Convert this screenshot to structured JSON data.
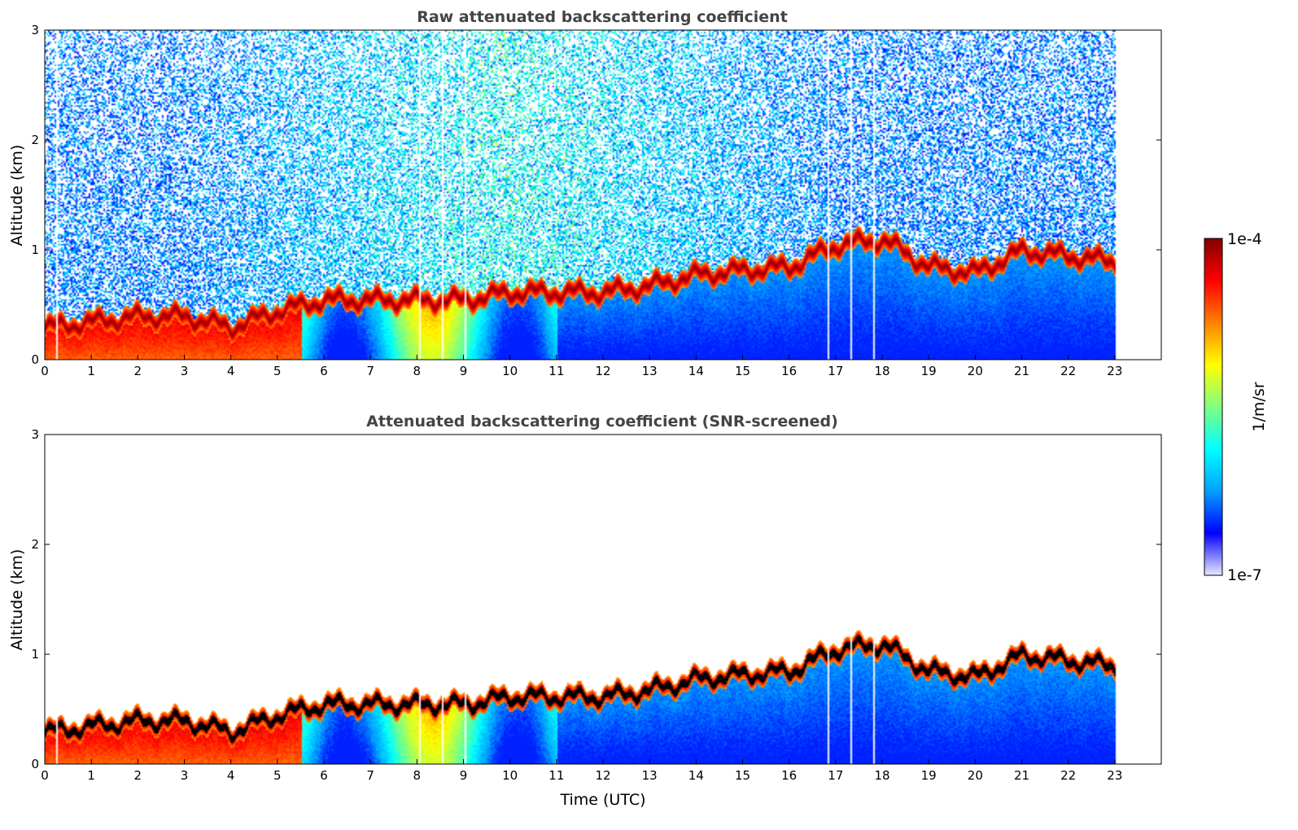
{
  "chart_data": [
    {
      "type": "heatmap",
      "title": "Raw attenuated backscattering coefficient",
      "xlabel": "",
      "ylabel": "Altitude (km)",
      "xlim": [
        0,
        24
      ],
      "ylim": [
        0,
        3
      ],
      "xticks": [
        0,
        1,
        2,
        3,
        4,
        5,
        6,
        7,
        8,
        9,
        10,
        11,
        12,
        13,
        14,
        15,
        16,
        17,
        18,
        19,
        20,
        21,
        22,
        23
      ],
      "yticks": [
        0,
        1,
        2,
        3
      ],
      "data_end_hour": 23,
      "screened": false,
      "layer_top_km": {
        "time": [
          0,
          1,
          2,
          3,
          4,
          5,
          6,
          7,
          8,
          9,
          10,
          11,
          12,
          13,
          14,
          15,
          16,
          17,
          18,
          19,
          20,
          21,
          22,
          23
        ],
        "altitude": [
          0.3,
          0.35,
          0.4,
          0.4,
          0.3,
          0.45,
          0.55,
          0.55,
          0.55,
          0.55,
          0.62,
          0.62,
          0.62,
          0.68,
          0.78,
          0.82,
          0.85,
          1.05,
          1.1,
          0.85,
          0.8,
          1.0,
          0.95,
          0.9
        ]
      }
    },
    {
      "type": "heatmap",
      "title": "Attenuated backscattering coefficient (SNR-screened)",
      "xlabel": "Time (UTC)",
      "ylabel": "Altitude (km)",
      "xlim": [
        0,
        24
      ],
      "ylim": [
        0,
        3
      ],
      "xticks": [
        0,
        1,
        2,
        3,
        4,
        5,
        6,
        7,
        8,
        9,
        10,
        11,
        12,
        13,
        14,
        15,
        16,
        17,
        18,
        19,
        20,
        21,
        22,
        23
      ],
      "yticks": [
        0,
        1,
        2,
        3
      ],
      "data_end_hour": 23,
      "screened": true,
      "layer_top_km": {
        "time": [
          0,
          1,
          2,
          3,
          4,
          5,
          6,
          7,
          8,
          9,
          10,
          11,
          12,
          13,
          14,
          15,
          16,
          17,
          18,
          19,
          20,
          21,
          22,
          23
        ],
        "altitude": [
          0.3,
          0.35,
          0.4,
          0.4,
          0.3,
          0.45,
          0.55,
          0.55,
          0.55,
          0.55,
          0.62,
          0.62,
          0.62,
          0.68,
          0.78,
          0.82,
          0.85,
          1.05,
          1.1,
          0.85,
          0.8,
          1.0,
          0.95,
          0.9
        ]
      }
    }
  ],
  "colorbar": {
    "label": "1/m/sr",
    "max_label": "1e-4",
    "min_label": "1e-7",
    "scale": "log",
    "range": [
      1e-07,
      0.0001
    ],
    "colors": [
      "#e8e8ff",
      "#0000ff",
      "#00a0ff",
      "#00ffff",
      "#80ff80",
      "#ffff00",
      "#ff8000",
      "#ff0000",
      "#800000"
    ]
  }
}
